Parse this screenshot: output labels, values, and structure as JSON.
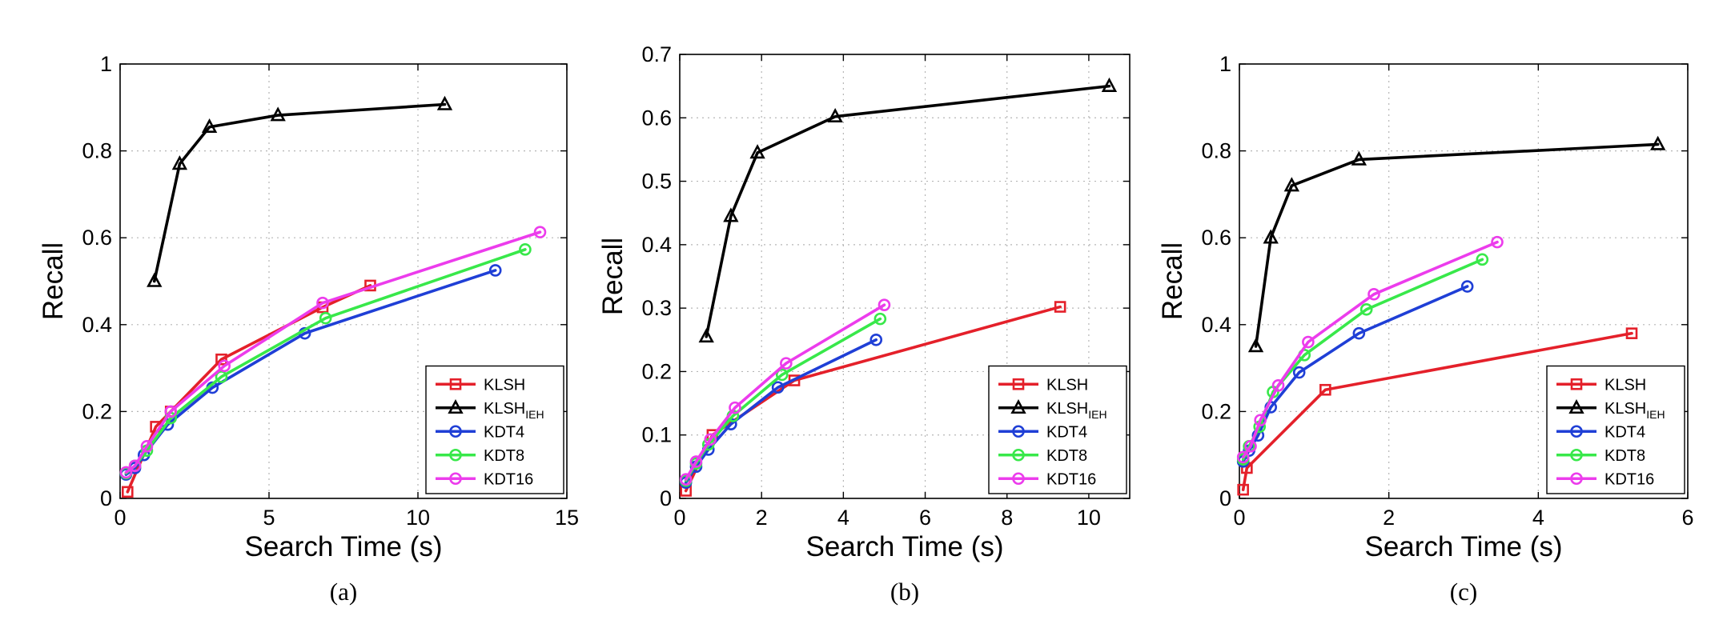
{
  "chart_data": [
    {
      "type": "line",
      "panel_label": "(a)",
      "xlabel": "Search Time (s)",
      "ylabel": "Recall",
      "xlim": [
        0,
        15
      ],
      "ylim": [
        0,
        1
      ],
      "xticks": [
        0,
        5,
        10,
        15
      ],
      "xtick_labels": [
        "0",
        "5",
        "10",
        "15"
      ],
      "yticks": [
        0,
        0.2,
        0.4,
        0.6,
        0.8,
        1
      ],
      "ytick_labels": [
        "0",
        "0.2",
        "0.4",
        "0.6",
        "0.8",
        "1"
      ],
      "grid": true,
      "legend_position": "bottom-right",
      "series": [
        {
          "name": "KLSH",
          "sub": "",
          "color": "#e4202a",
          "marker": "square",
          "x": [
            0.25,
            1.2,
            1.7,
            3.4,
            6.8,
            8.4
          ],
          "y": [
            0.015,
            0.165,
            0.2,
            0.32,
            0.44,
            0.49
          ]
        },
        {
          "name": "KLSH",
          "sub": "IEH",
          "color": "#000000",
          "marker": "triangle",
          "x": [
            1.15,
            2,
            3,
            5.3,
            10.9
          ],
          "y": [
            0.5,
            0.77,
            0.855,
            0.882,
            0.907
          ]
        },
        {
          "name": "KDT4",
          "sub": "",
          "color": "#1f3fd6",
          "marker": "circle",
          "x": [
            0.2,
            0.5,
            0.8,
            1.6,
            3.1,
            6.2,
            12.6
          ],
          "y": [
            0.055,
            0.07,
            0.1,
            0.17,
            0.255,
            0.38,
            0.525
          ]
        },
        {
          "name": "KDT8",
          "sub": "",
          "color": "#38e84a",
          "marker": "circle",
          "x": [
            0.2,
            0.5,
            0.9,
            1.7,
            3.4,
            6.9,
            13.6
          ],
          "y": [
            0.058,
            0.075,
            0.11,
            0.185,
            0.28,
            0.415,
            0.573
          ]
        },
        {
          "name": "KDT16",
          "sub": "",
          "color": "#ec3cec",
          "marker": "circle",
          "x": [
            0.2,
            0.5,
            0.9,
            1.7,
            3.5,
            6.8,
            14.1
          ],
          "y": [
            0.06,
            0.075,
            0.12,
            0.2,
            0.305,
            0.45,
            0.613
          ]
        }
      ]
    },
    {
      "type": "line",
      "panel_label": "(b)",
      "xlabel": "Search Time (s)",
      "ylabel": "Recall",
      "xlim": [
        0,
        11
      ],
      "ylim": [
        0,
        0.7
      ],
      "xticks": [
        0,
        2,
        4,
        6,
        8,
        10
      ],
      "xtick_labels": [
        "0",
        "2",
        "4",
        "6",
        "8",
        "10"
      ],
      "yticks": [
        0,
        0.1,
        0.2,
        0.3,
        0.4,
        0.5,
        0.6,
        0.7
      ],
      "ytick_labels": [
        "0",
        "0.1",
        "0.2",
        "0.3",
        "0.4",
        "0.5",
        "0.6",
        "0.7"
      ],
      "grid": true,
      "legend_position": "bottom-right",
      "series": [
        {
          "name": "KLSH",
          "sub": "",
          "color": "#e4202a",
          "marker": "square",
          "x": [
            0.15,
            0.8,
            2.8,
            9.3
          ],
          "y": [
            0.012,
            0.1,
            0.186,
            0.302
          ]
        },
        {
          "name": "KLSH",
          "sub": "IEH",
          "color": "#000000",
          "marker": "triangle",
          "x": [
            0.65,
            1.25,
            1.9,
            3.8,
            10.5
          ],
          "y": [
            0.255,
            0.445,
            0.545,
            0.602,
            0.65
          ]
        },
        {
          "name": "KDT4",
          "sub": "",
          "color": "#1f3fd6",
          "marker": "circle",
          "x": [
            0.15,
            0.4,
            0.7,
            1.25,
            2.4,
            4.8
          ],
          "y": [
            0.025,
            0.05,
            0.077,
            0.117,
            0.175,
            0.25
          ]
        },
        {
          "name": "KDT8",
          "sub": "",
          "color": "#38e84a",
          "marker": "circle",
          "x": [
            0.15,
            0.4,
            0.7,
            1.3,
            2.5,
            4.9
          ],
          "y": [
            0.028,
            0.055,
            0.085,
            0.13,
            0.195,
            0.283
          ]
        },
        {
          "name": "KDT16",
          "sub": "",
          "color": "#ec3cec",
          "marker": "circle",
          "x": [
            0.15,
            0.4,
            0.75,
            1.35,
            2.6,
            5
          ],
          "y": [
            0.03,
            0.058,
            0.093,
            0.143,
            0.213,
            0.305
          ]
        }
      ]
    },
    {
      "type": "line",
      "panel_label": "(c)",
      "xlabel": "Search Time (s)",
      "ylabel": "Recall",
      "xlim": [
        0,
        6
      ],
      "ylim": [
        0,
        1
      ],
      "xticks": [
        0,
        2,
        4,
        6
      ],
      "xtick_labels": [
        "0",
        "2",
        "4",
        "6"
      ],
      "yticks": [
        0,
        0.2,
        0.4,
        0.6,
        0.8,
        1
      ],
      "ytick_labels": [
        "0",
        "0.2",
        "0.4",
        "0.6",
        "0.8",
        "1"
      ],
      "grid": true,
      "legend_position": "bottom-right",
      "series": [
        {
          "name": "KLSH",
          "sub": "",
          "color": "#e4202a",
          "marker": "square",
          "x": [
            0.05,
            0.1,
            1.15,
            5.25
          ],
          "y": [
            0.02,
            0.07,
            0.25,
            0.38
          ]
        },
        {
          "name": "KLSH",
          "sub": "IEH",
          "color": "#000000",
          "marker": "triangle",
          "x": [
            0.22,
            0.42,
            0.7,
            1.6,
            5.6
          ],
          "y": [
            0.35,
            0.6,
            0.72,
            0.78,
            0.815
          ]
        },
        {
          "name": "KDT4",
          "sub": "",
          "color": "#1f3fd6",
          "marker": "circle",
          "x": [
            0.05,
            0.13,
            0.25,
            0.42,
            0.8,
            1.6,
            3.05
          ],
          "y": [
            0.085,
            0.11,
            0.145,
            0.21,
            0.29,
            0.38,
            0.488
          ]
        },
        {
          "name": "KDT8",
          "sub": "",
          "color": "#38e84a",
          "marker": "circle",
          "x": [
            0.05,
            0.13,
            0.27,
            0.45,
            0.87,
            1.7,
            3.25
          ],
          "y": [
            0.09,
            0.12,
            0.165,
            0.245,
            0.33,
            0.435,
            0.55
          ]
        },
        {
          "name": "KDT16",
          "sub": "",
          "color": "#ec3cec",
          "marker": "circle",
          "x": [
            0.05,
            0.15,
            0.28,
            0.52,
            0.92,
            1.8,
            3.45
          ],
          "y": [
            0.095,
            0.12,
            0.18,
            0.26,
            0.36,
            0.47,
            0.59
          ]
        }
      ]
    }
  ]
}
